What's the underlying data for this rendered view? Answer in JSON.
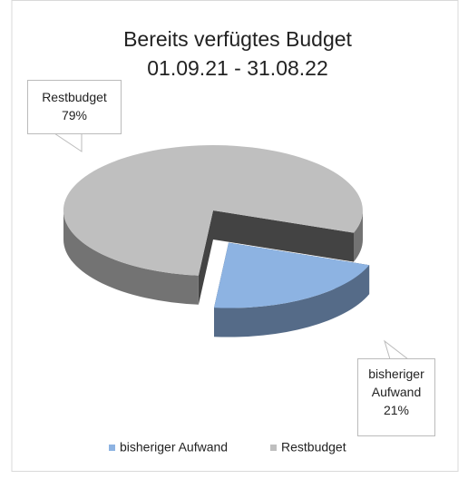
{
  "chart_data": {
    "type": "pie3d",
    "title": "Bereits verfügtes Budget",
    "subtitle": "01.09.21 - 31.08.22",
    "categories": [
      "bisheriger Aufwand",
      "Restbudget"
    ],
    "values": [
      21,
      79
    ],
    "value_labels": [
      "21%",
      "79%"
    ],
    "colors": [
      "#8db3e2",
      "#bfbfbf"
    ],
    "legend": "bottom"
  }
}
